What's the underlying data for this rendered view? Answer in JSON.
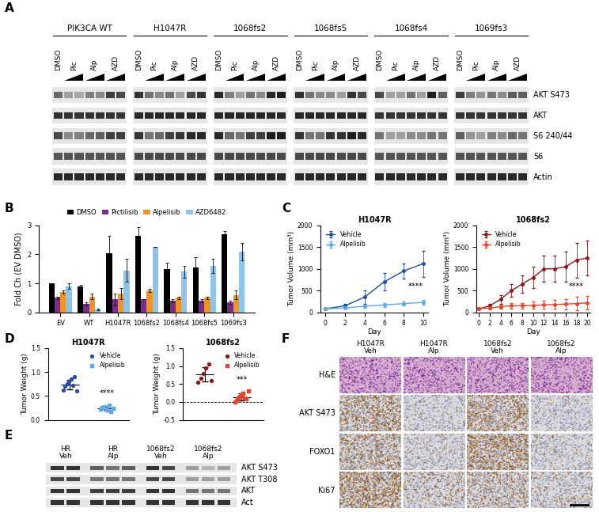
{
  "blot_panels": [
    {
      "panel_label": "A",
      "lane_labels": [
        "DMSO",
        "Pic",
        "Alp",
        "AZD"
      ],
      "lanes_per_label": [
        1,
        2,
        2,
        2
      ],
      "dose_wedge": [
        false,
        true,
        true,
        true
      ],
      "row_labels": [
        "AKT S473",
        "AKT",
        "S6 240/44",
        "S6",
        "Actin"
      ],
      "groups": [
        {
          "name": "PIK3CA WT",
          "bands": [
            [
              0.55,
              0.3,
              0.25,
              0.45,
              0.4,
              0.75,
              0.7
            ],
            [
              0.8,
              0.8,
              0.8,
              0.8,
              0.8,
              0.8,
              0.8
            ],
            [
              0.7,
              0.4,
              0.45,
              0.55,
              0.6,
              0.75,
              0.75
            ],
            [
              0.65,
              0.65,
              0.65,
              0.65,
              0.65,
              0.65,
              0.65
            ],
            [
              0.85,
              0.85,
              0.85,
              0.85,
              0.85,
              0.85,
              0.85
            ]
          ]
        },
        {
          "name": "H1047R",
          "bands": [
            [
              0.8,
              0.5,
              0.4,
              0.5,
              0.3,
              0.7,
              0.8
            ],
            [
              0.85,
              0.85,
              0.85,
              0.85,
              0.85,
              0.85,
              0.85
            ],
            [
              0.8,
              0.5,
              0.55,
              0.75,
              0.8,
              0.85,
              0.85
            ],
            [
              0.7,
              0.7,
              0.7,
              0.7,
              0.7,
              0.7,
              0.7
            ],
            [
              0.85,
              0.85,
              0.85,
              0.85,
              0.85,
              0.85,
              0.85
            ]
          ]
        },
        {
          "name": "1068fs2",
          "bands": [
            [
              0.85,
              0.45,
              0.3,
              0.5,
              0.4,
              0.85,
              0.9
            ],
            [
              0.85,
              0.85,
              0.85,
              0.85,
              0.85,
              0.85,
              0.85
            ],
            [
              0.85,
              0.55,
              0.5,
              0.75,
              0.75,
              0.9,
              0.9
            ],
            [
              0.7,
              0.7,
              0.7,
              0.7,
              0.7,
              0.7,
              0.7
            ],
            [
              0.85,
              0.85,
              0.85,
              0.85,
              0.85,
              0.85,
              0.85
            ]
          ]
        },
        {
          "name": "1068fs5",
          "bands": [
            [
              0.8,
              0.5,
              0.4,
              0.4,
              0.3,
              0.8,
              0.7
            ],
            [
              0.85,
              0.85,
              0.85,
              0.85,
              0.85,
              0.85,
              0.85
            ],
            [
              0.8,
              0.5,
              0.5,
              0.8,
              0.8,
              0.9,
              0.85
            ],
            [
              0.7,
              0.7,
              0.7,
              0.7,
              0.7,
              0.7,
              0.7
            ],
            [
              0.85,
              0.85,
              0.85,
              0.85,
              0.85,
              0.85,
              0.85
            ]
          ]
        },
        {
          "name": "1068fs4",
          "bands": [
            [
              0.7,
              0.3,
              0.3,
              0.5,
              0.3,
              0.9,
              0.6
            ],
            [
              0.8,
              0.8,
              0.8,
              0.8,
              0.8,
              0.8,
              0.8
            ],
            [
              0.5,
              0.3,
              0.3,
              0.4,
              0.4,
              0.5,
              0.5
            ],
            [
              0.65,
              0.65,
              0.65,
              0.65,
              0.65,
              0.65,
              0.65
            ],
            [
              0.85,
              0.85,
              0.85,
              0.85,
              0.85,
              0.85,
              0.85
            ]
          ]
        },
        {
          "name": "1069fs3",
          "bands": [
            [
              0.75,
              0.45,
              0.35,
              0.5,
              0.4,
              0.6,
              0.6
            ],
            [
              0.8,
              0.8,
              0.8,
              0.8,
              0.8,
              0.8,
              0.8
            ],
            [
              0.6,
              0.35,
              0.3,
              0.45,
              0.4,
              0.55,
              0.5
            ],
            [
              0.65,
              0.65,
              0.65,
              0.65,
              0.65,
              0.65,
              0.65
            ],
            [
              0.85,
              0.85,
              0.85,
              0.85,
              0.85,
              0.85,
              0.85
            ]
          ]
        }
      ]
    },
    {
      "panel_label": "E",
      "row_labels": [
        "AKT S473",
        "AKT T308",
        "AKT",
        "Act"
      ],
      "groups": [
        {
          "name": "HR\nVeh",
          "bands": [
            [
              0.8,
              0.8
            ],
            [
              0.7,
              0.7
            ],
            [
              0.8,
              0.8
            ],
            [
              0.8,
              0.8
            ]
          ]
        },
        {
          "name": "HR\nAlp",
          "bands": [
            [
              0.6,
              0.5,
              0.6
            ],
            [
              0.5,
              0.5,
              0.5
            ],
            [
              0.75,
              0.75,
              0.75
            ],
            [
              0.8,
              0.8,
              0.8
            ]
          ]
        },
        {
          "name": "1068fs2\nVeh",
          "bands": [
            [
              0.8,
              0.7
            ],
            [
              0.7,
              0.7
            ],
            [
              0.8,
              0.8
            ],
            [
              0.8,
              0.8
            ]
          ]
        },
        {
          "name": "1068fs2\nAlp",
          "bands": [
            [
              0.3,
              0.2,
              0.3
            ],
            [
              0.3,
              0.3,
              0.3
            ],
            [
              0.5,
              0.5,
              0.5
            ],
            [
              0.8,
              0.8,
              0.8
            ]
          ]
        }
      ]
    }
  ],
  "chart_data": [
    {
      "type": "bar",
      "panel_label": "B",
      "y_label": "Fold Ch (EV DMSO)",
      "categories": [
        "EV",
        "WT",
        "H1047R",
        "1068fs2",
        "1068fs4",
        "1068fs5",
        "1069fs3"
      ],
      "series": [
        {
          "name": "DMSO",
          "color": "#000000",
          "values": [
            1.0,
            0.9,
            2.05,
            2.65,
            1.5,
            1.55,
            2.7
          ],
          "errors": [
            0.0,
            0.05,
            0.6,
            0.3,
            0.2,
            0.35,
            0.1
          ]
        },
        {
          "name": "Pictilisib",
          "color": "#7b2d8b",
          "values": [
            0.5,
            0.3,
            0.45,
            0.45,
            0.4,
            0.4,
            0.35
          ],
          "errors": [
            0.05,
            0.05,
            0.2,
            0.0,
            0.05,
            0.05,
            0.05
          ]
        },
        {
          "name": "Alpelisib",
          "color": "#f0961e",
          "values": [
            0.7,
            0.55,
            0.65,
            0.75,
            0.5,
            0.5,
            0.6
          ],
          "errors": [
            0.05,
            0.1,
            0.2,
            0.05,
            0.05,
            0.05,
            0.15
          ]
        },
        {
          "name": "AZD6482",
          "color": "#8cc4ea",
          "values": [
            0.9,
            0.1,
            1.45,
            2.25,
            1.4,
            1.6,
            2.1
          ],
          "errors": [
            0.1,
            0.02,
            0.4,
            0.0,
            0.2,
            0.25,
            0.3
          ]
        }
      ],
      "ylim": [
        0,
        3
      ],
      "yticks": [
        0,
        1,
        2,
        3
      ],
      "legend": "upper center",
      "grid": false
    },
    {
      "type": "line",
      "panel_label": "C",
      "title": "H1047R",
      "x_label": "Day",
      "y_label": "Tumor Volume (mm³)",
      "x": [
        0,
        2,
        4,
        6,
        8,
        10
      ],
      "series": [
        {
          "name": "Vehicle",
          "color": "#1f4e9c",
          "marker": "o",
          "values": [
            80,
            150,
            350,
            700,
            950,
            1120
          ],
          "errors": [
            20,
            50,
            150,
            200,
            180,
            300
          ]
        },
        {
          "name": "Alpelisib",
          "color": "#5fa8e8",
          "marker": "o",
          "values": [
            80,
            100,
            140,
            170,
            200,
            230
          ],
          "errors": [
            10,
            20,
            30,
            40,
            40,
            50
          ]
        }
      ],
      "xlim": [
        -0.5,
        10.5
      ],
      "xticks": [
        0,
        2,
        4,
        6,
        8,
        10
      ],
      "ylim": [
        0,
        2000
      ],
      "yticks": [
        0,
        500,
        1000,
        1500,
        2000
      ],
      "legend": "upper left",
      "annotation": "****"
    },
    {
      "type": "line",
      "title": "1068fs2",
      "x_label": "Day",
      "y_label": "Tumor Volume (mm³)",
      "x": [
        0,
        2,
        4,
        6,
        8,
        10,
        12,
        14,
        16,
        18,
        20
      ],
      "series": [
        {
          "name": "Vehicle",
          "color": "#8b1a1a",
          "marker": "o",
          "values": [
            80,
            150,
            300,
            500,
            650,
            800,
            1000,
            1000,
            1050,
            1200,
            1250
          ],
          "errors": [
            20,
            50,
            100,
            150,
            200,
            250,
            300,
            300,
            350,
            400,
            400
          ]
        },
        {
          "name": "Alpelisib",
          "color": "#e8432a",
          "marker": "o",
          "values": [
            80,
            100,
            130,
            150,
            150,
            160,
            170,
            180,
            190,
            200,
            220
          ],
          "errors": [
            10,
            30,
            50,
            60,
            70,
            80,
            90,
            100,
            120,
            150,
            150
          ]
        }
      ],
      "xlim": [
        -0.5,
        20.5
      ],
      "xticks": [
        0,
        2,
        4,
        6,
        8,
        10,
        12,
        14,
        16,
        18,
        20
      ],
      "ylim": [
        0,
        2000
      ],
      "yticks": [
        0,
        500,
        1000,
        1500,
        2000
      ],
      "legend": "upper left",
      "annotation": "****"
    },
    {
      "type": "scatter",
      "panel_label": "D",
      "title": "H1047R",
      "y_label": "Tumor Weight (g)",
      "series": [
        {
          "name": "Vehicle",
          "color": "#2b4fa3",
          "marker": "o",
          "values": [
            0.62,
            0.7,
            0.75,
            0.8,
            0.85,
            0.72,
            0.9,
            0.6
          ],
          "mean": 0.74,
          "sd": 0.1
        },
        {
          "name": "Alpelisib",
          "color": "#5fa8e8",
          "marker": "s",
          "values": [
            0.22,
            0.25,
            0.28,
            0.2,
            0.3,
            0.18,
            0.24
          ],
          "mean": 0.24,
          "sd": 0.04
        }
      ],
      "ylim": [
        0,
        1.5
      ],
      "yticks": [
        {
          "value": 0,
          "label": "0.0"
        },
        0.5,
        {
          "value": 1,
          "label": "1.0"
        },
        1.5
      ],
      "legend": "upper right",
      "tick_labels": "y",
      "annotation": "****"
    },
    {
      "type": "scatter",
      "title": "1068fs2",
      "y_label": "Tumor Weight (g)",
      "series": [
        {
          "name": "Vehicle",
          "color": "#8b1a1a",
          "marker": "o",
          "values": [
            0.55,
            0.65,
            0.8,
            0.95,
            1.05,
            0.6
          ],
          "mean": 0.77,
          "sd": 0.2
        },
        {
          "name": "Alpelisib",
          "color": "#e8432a",
          "marker": "s",
          "values": [
            0.0,
            0.05,
            0.1,
            0.15,
            0.2,
            0.25,
            0.1,
            0.08,
            0.3
          ],
          "mean": 0.14,
          "sd": 0.1
        }
      ],
      "ylim": [
        -0.5,
        1.5
      ],
      "yticks": [
        -0.5,
        {
          "value": 0,
          "label": "0.0"
        },
        0.5,
        {
          "value": 1,
          "label": "1.0"
        },
        1.5
      ],
      "reference_y": 0,
      "legend": "upper right",
      "tick_labels": "y",
      "annotation": "***"
    }
  ],
  "histology": {
    "panel_label": "F",
    "columns": [
      "H1047R\nVeh",
      "H1047R\nAlp",
      "1068fs2\nVeh",
      "1068fs2\nAlp"
    ],
    "rows": [
      "H&E",
      "AKT S473",
      "FOXO1",
      "Ki67"
    ],
    "stain_intensity": [
      [
        1,
        1,
        1,
        1
      ],
      [
        0.6,
        0.1,
        0.6,
        0.1
      ],
      [
        0.5,
        0.15,
        0.7,
        0.15
      ],
      [
        0.7,
        0.3,
        0.4,
        0.2
      ]
    ]
  }
}
